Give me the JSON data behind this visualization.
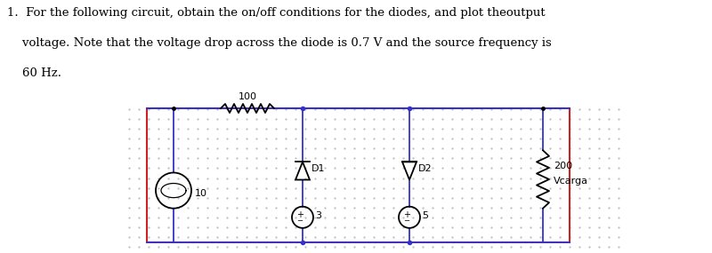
{
  "text_line1": "1.  For the following circuit, obtain the on/off conditions for the diodes, and plot theoutput",
  "text_line2": "    voltage. Note that the voltage drop across the diode is 0.7 V and the source frequency is",
  "text_line3": "    60 Hz.",
  "circuit": {
    "border_color": "#cc2222",
    "wire_color": "#3333cc",
    "component_color": "#000000",
    "dot_color": "#bbbbbb",
    "resistor_100_label": "100",
    "resistor_200_label": "200",
    "vcarga_label": "Vcarga",
    "d1_label": "D1",
    "d2_label": "D2",
    "source_label": "10",
    "v3_label": "3",
    "v5_label": "5"
  },
  "fig_width": 8.0,
  "fig_height": 2.85,
  "dpi": 100
}
